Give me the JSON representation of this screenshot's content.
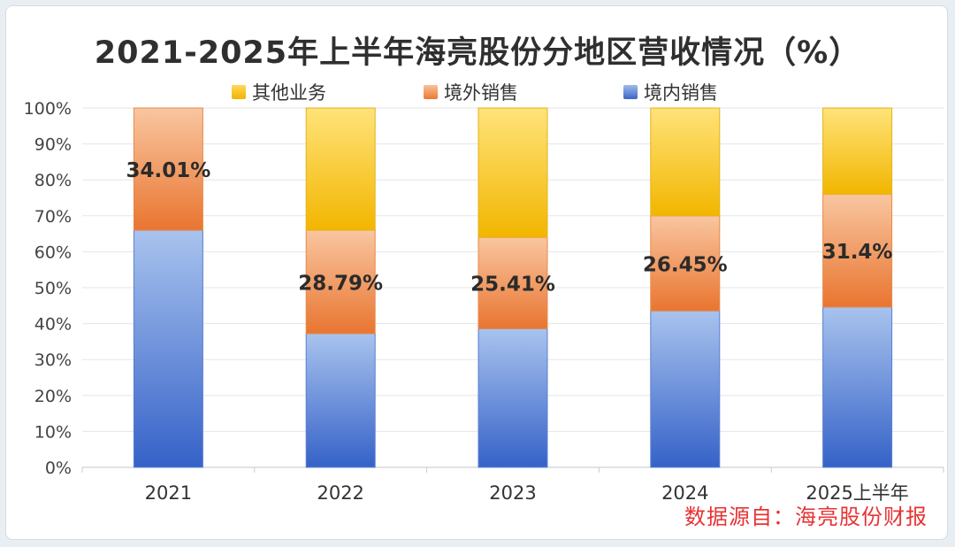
{
  "chart_data": {
    "type": "bar",
    "stacked": true,
    "title": "2021-2025年上半年海亮股份分地区营收情况（%）",
    "categories": [
      "2021",
      "2022",
      "2023",
      "2024",
      "2025上半年"
    ],
    "series": [
      {
        "name": "境内销售",
        "color": "#3d68cb",
        "values": [
          65.99,
          37.21,
          38.59,
          43.55,
          44.6
        ]
      },
      {
        "name": "境外销售",
        "color": "#ec8038",
        "values": [
          34.01,
          28.79,
          25.41,
          26.45,
          31.4
        ]
      },
      {
        "name": "其他业务",
        "color": "#f5c21d",
        "values": [
          0,
          34.0,
          36.0,
          30.0,
          24.0
        ]
      }
    ],
    "legend_order": [
      "其他业务",
      "境外销售",
      "境内销售"
    ],
    "data_labels": [
      "34.01%",
      "28.79%",
      "25.41%",
      "26.45%",
      "31.4%"
    ],
    "yticks": [
      "0%",
      "10%",
      "20%",
      "30%",
      "40%",
      "50%",
      "60%",
      "70%",
      "80%",
      "90%",
      "100%"
    ],
    "ylim": [
      0,
      100
    ],
    "grid": true,
    "legend_position": "top"
  },
  "source_text": "数据源自：海亮股份财报"
}
